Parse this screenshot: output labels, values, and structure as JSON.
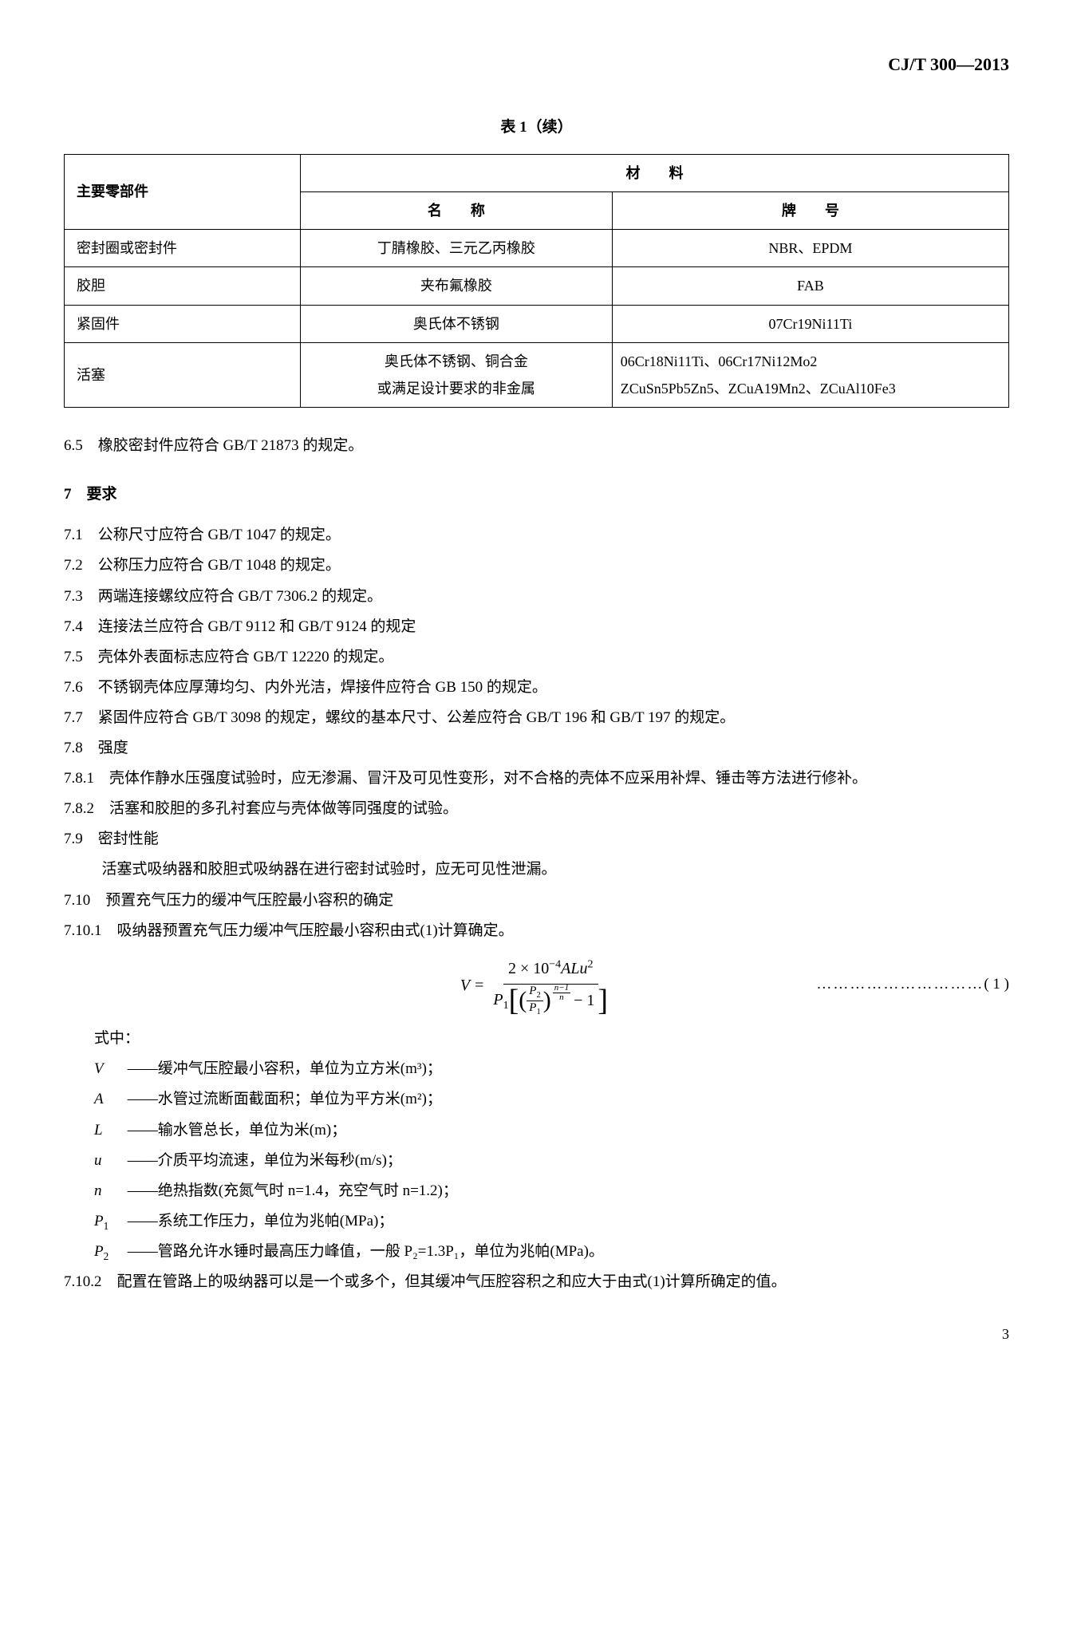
{
  "doc_code": "CJ/T 300—2013",
  "table_title": "表 1（续）",
  "table": {
    "header_part": "主要零部件",
    "header_material": "材　　料",
    "header_name": "名　　称",
    "header_brand": "牌　　号",
    "rows": [
      {
        "part": "密封圈或密封件",
        "name": "丁腈橡胶、三元乙丙橡胶",
        "brand": "NBR、EPDM",
        "brand_align": "center"
      },
      {
        "part": "胶胆",
        "name": "夹布氟橡胶",
        "brand": "FAB",
        "brand_align": "center"
      },
      {
        "part": "紧固件",
        "name": "奥氏体不锈钢",
        "brand": "07Cr19Ni11Ti",
        "brand_align": "center"
      },
      {
        "part": "活塞",
        "name": "奥氏体不锈钢、铜合金\n或满足设计要求的非金属",
        "brand": "06Cr18Ni11Ti、06Cr17Ni12Mo2\nZCuSn5Pb5Zn5、ZCuA19Mn2、ZCuAl10Fe3",
        "brand_align": "left"
      }
    ]
  },
  "c6_5": "6.5　橡胶密封件应符合 GB/T 21873 的规定。",
  "sec7": "7　要求",
  "c7_1": "7.1　公称尺寸应符合 GB/T 1047 的规定。",
  "c7_2": "7.2　公称压力应符合 GB/T 1048 的规定。",
  "c7_3": "7.3　两端连接螺纹应符合 GB/T 7306.2 的规定。",
  "c7_4": "7.4　连接法兰应符合 GB/T 9112 和 GB/T 9124 的规定",
  "c7_5": "7.5　壳体外表面标志应符合 GB/T 12220 的规定。",
  "c7_6": "7.6　不锈钢壳体应厚薄均匀、内外光洁，焊接件应符合 GB 150 的规定。",
  "c7_7": "7.7　紧固件应符合 GB/T 3098 的规定，螺纹的基本尺寸、公差应符合 GB/T 196 和 GB/T 197 的规定。",
  "c7_8": "7.8　强度",
  "c7_8_1": "7.8.1　壳体作静水压强度试验时，应无渗漏、冒汗及可见性变形，对不合格的壳体不应采用补焊、锤击等方法进行修补。",
  "c7_8_2": "7.8.2　活塞和胶胆的多孔衬套应与壳体做等同强度的试验。",
  "c7_9": "7.9　密封性能",
  "c7_9_body": "活塞式吸纳器和胶胆式吸纳器在进行密封试验时，应无可见性泄漏。",
  "c7_10": "7.10　预置充气压力的缓冲气压腔最小容积的确定",
  "c7_10_1": "7.10.1　吸纳器预置充气压力缓冲气压腔最小容积由式(1)计算确定。",
  "eq_num": "( 1 )",
  "formula": {
    "lhs": "V",
    "num_const": "2 × 10",
    "num_exp": "−4",
    "num_rest": "ALu",
    "num_sq": "2",
    "den_P1": "P",
    "den_P1_sub": "1",
    "frac_P2": "P",
    "frac_P2_sub": "2",
    "frac_P1": "P",
    "frac_P1_sub": "1",
    "exp_num": "n−1",
    "exp_den": "n",
    "minus1": "− 1"
  },
  "where_label": "式中：",
  "where": [
    {
      "sym": "V",
      "sub": "",
      "desc": "——缓冲气压腔最小容积，单位为立方米(m³)；"
    },
    {
      "sym": "A",
      "sub": "",
      "desc": "——水管过流断面截面积；单位为平方米(m²)；"
    },
    {
      "sym": "L",
      "sub": "",
      "desc": "——输水管总长，单位为米(m)；"
    },
    {
      "sym": "u",
      "sub": "",
      "desc": "——介质平均流速，单位为米每秒(m/s)；"
    },
    {
      "sym": "n",
      "sub": "",
      "desc": "——绝热指数(充氮气时 n=1.4，充空气时 n=1.2)；"
    },
    {
      "sym": "P",
      "sub": "1",
      "desc": "——系统工作压力，单位为兆帕(MPa)；"
    },
    {
      "sym": "P",
      "sub": "2",
      "desc": "——管路允许水锤时最高压力峰值，一般 P₂=1.3P₁，单位为兆帕(MPa)。"
    }
  ],
  "c7_10_2": "7.10.2　配置在管路上的吸纳器可以是一个或多个，但其缓冲气压腔容积之和应大于由式(1)计算所确定的值。",
  "page_num": "3"
}
